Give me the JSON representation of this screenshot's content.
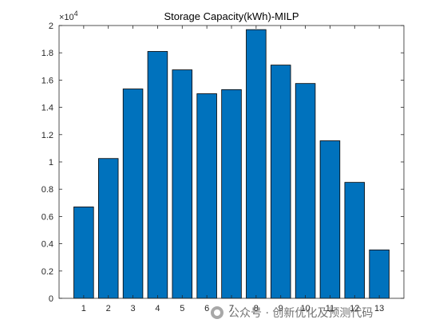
{
  "chart_data": {
    "type": "bar",
    "title": "Storage Capacity(kWh)-MILP",
    "xlabel": "",
    "ylabel": "",
    "categories": [
      "1",
      "2",
      "3",
      "4",
      "5",
      "6",
      "7",
      "8",
      "9",
      "10",
      "11",
      "12",
      "13"
    ],
    "values": [
      6700,
      10250,
      15350,
      18100,
      16750,
      15000,
      15300,
      19700,
      17100,
      15750,
      11550,
      8500,
      3550
    ],
    "ylim": [
      0,
      20000
    ],
    "yticks": [
      0,
      0.2,
      0.4,
      0.6,
      0.8,
      1,
      1.2,
      1.4,
      1.6,
      1.8,
      2
    ],
    "ytick_labels": [
      "0",
      "0.2",
      "0.4",
      "0.6",
      "0.8",
      "1",
      "1.2",
      "1.4",
      "1.6",
      "1.8",
      "2"
    ],
    "y_exponent_label": "×10",
    "y_exponent_power": "4",
    "xlim": [
      0,
      14
    ],
    "bar_color": "#0072BD",
    "bar_edge_color": "#000000",
    "grid": false,
    "legend": "none"
  },
  "watermark": {
    "text": "公众号 · 创新优化及预测代码",
    "icon": "wechat-icon"
  }
}
